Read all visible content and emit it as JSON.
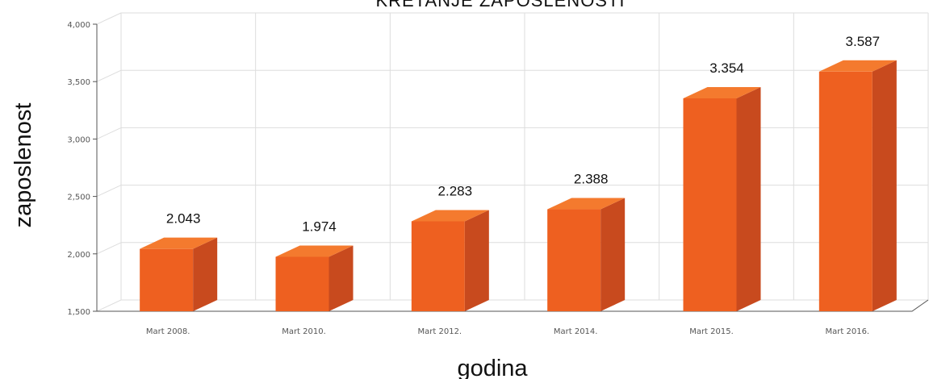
{
  "chart_data": {
    "type": "bar",
    "title": "KRETANJE ZAPOSLENOSTI",
    "xlabel": "godina",
    "ylabel": "zaposlenost",
    "categories": [
      "Mart 2008.",
      "Mart 2010.",
      "Mart 2012.",
      "Mart 2014.",
      "Mart 2015.",
      "Mart 2016."
    ],
    "values": [
      2043,
      1974,
      2283,
      2388,
      3354,
      3587
    ],
    "value_labels": [
      "2.043",
      "1.974",
      "2.283",
      "2.388",
      "3.354",
      "3.587"
    ],
    "ylim": [
      1500,
      4000
    ],
    "yticks": [
      1500,
      2000,
      2500,
      3000,
      3500,
      4000
    ],
    "ytick_labels": [
      "1,500",
      "2,000",
      "2,500",
      "3,000",
      "3,500",
      "4,000"
    ],
    "grid": true,
    "colors": {
      "bar_front": "#EE6020",
      "bar_top": "#F47A2E",
      "bar_side": "#C84A1E",
      "grid": "#DDDDDD",
      "axis": "#555555"
    }
  }
}
